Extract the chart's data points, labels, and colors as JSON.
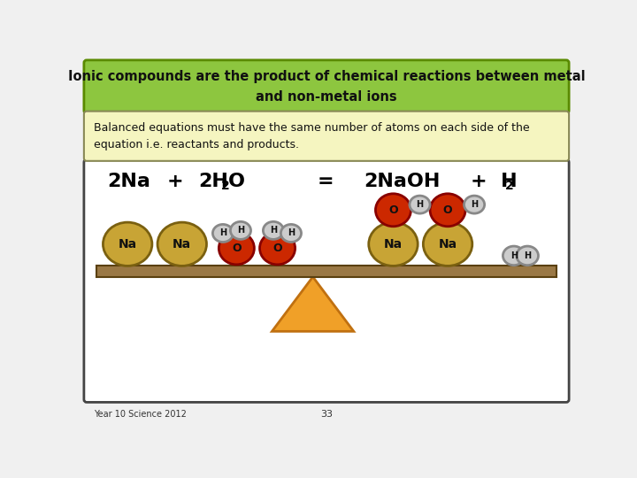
{
  "title_text": "Ionic compounds are the product of chemical reactions between metal\nand non-metal ions",
  "subtitle_text": "Balanced equations must have the same number of atoms on each side of the\nequation i.e. reactants and products.",
  "footer_left": "Year 10 Science 2012",
  "footer_center": "33",
  "bg_color": "#f0f0f0",
  "title_bg": "#8dc63f",
  "title_border": "#5a8a00",
  "subtitle_bg": "#f5f5c0",
  "subtitle_border": "#888855",
  "main_bg": "#ffffff",
  "main_border": "#444444",
  "na_color": "#c8a435",
  "na_stroke": "#7a6010",
  "o_color": "#cc2800",
  "o_stroke": "#880000",
  "h_color": "#cccccc",
  "h_stroke": "#888888",
  "beam_color": "#9a7845",
  "beam_stroke": "#5a4010",
  "triangle_color": "#f0a028",
  "triangle_stroke": "#c07010"
}
